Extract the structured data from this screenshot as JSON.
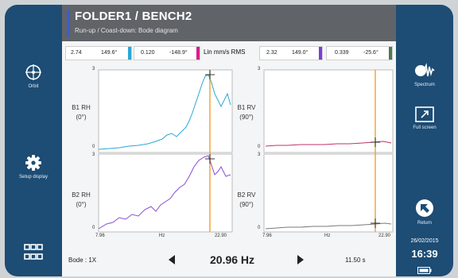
{
  "header": {
    "title": "FOLDER1 / BENCH2",
    "subtitle": "Run-up / Coast-down: Bode diagram"
  },
  "readings": [
    {
      "magnitude": "2.74",
      "phase": "149.6°",
      "color": "#2aa7d6"
    },
    {
      "magnitude": "0.120",
      "phase": "-148.9°",
      "color": "#d61f8c"
    },
    {
      "magnitude": "2.32",
      "phase": "149.0°",
      "color": "#7c3cd6"
    },
    {
      "magnitude": "0.339",
      "phase": "-25.6°",
      "color": "#4f7a4f"
    }
  ],
  "units": "Lin mm/s RMS",
  "plots": {
    "tl": {
      "name": "B1 RH",
      "angle": "(0°)",
      "color": "#2aa7d6"
    },
    "tr": {
      "name": "B1 RV",
      "angle": "(90°)",
      "color": "#c0306b"
    },
    "bl": {
      "name": "B2 RH",
      "angle": "(0°)",
      "color": "#8a4cd6"
    },
    "br": {
      "name": "B2 RV",
      "angle": "(90°)",
      "color": "#7a7a7a"
    }
  },
  "axis": {
    "y_max": "3",
    "y_min": "0",
    "x_min": "7.96",
    "x_unit": "Hz",
    "x_max": "22.90"
  },
  "cursor_color": "#f0a030",
  "footer": {
    "mode": "Bode : 1X",
    "frequency": "20.96 Hz",
    "time": "11.50 s"
  },
  "left_buttons": {
    "orbit": "Orbit",
    "setup": "Setup display"
  },
  "right_buttons": {
    "spectrum": "Spectrum",
    "fullscreen": "Full screen",
    "return": "Return"
  },
  "status": {
    "date": "26/02/2015",
    "time": "16:39"
  },
  "accent_color": "#1d4c74"
}
